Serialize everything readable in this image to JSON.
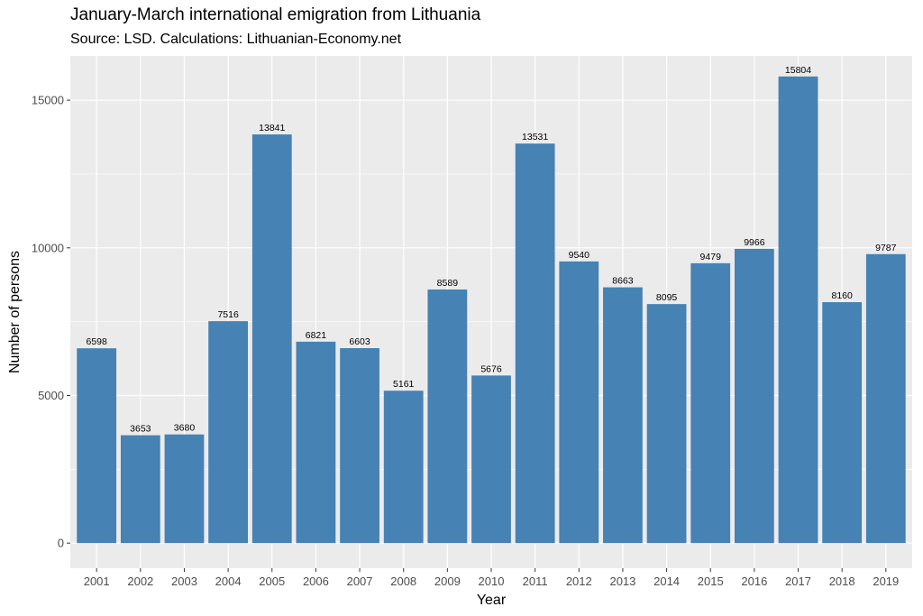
{
  "chart_data": {
    "type": "bar",
    "title": "January-March international emigration from Lithuania",
    "subtitle": "Source: LSD. Calculations: Lithuanian-Economy.net",
    "xlabel": "Year",
    "ylabel": "Number of persons",
    "categories": [
      "2001",
      "2002",
      "2003",
      "2004",
      "2005",
      "2006",
      "2007",
      "2008",
      "2009",
      "2010",
      "2011",
      "2012",
      "2013",
      "2014",
      "2015",
      "2016",
      "2017",
      "2018",
      "2019"
    ],
    "values": [
      6598,
      3653,
      3680,
      7516,
      13841,
      6821,
      6603,
      5161,
      8589,
      5676,
      13531,
      9540,
      8663,
      8095,
      9479,
      9966,
      15804,
      8160,
      9787
    ],
    "ylim": [
      -850,
      16500
    ],
    "yticks": [
      0,
      5000,
      10000,
      15000
    ],
    "ytick_labels": [
      "0",
      "5000",
      "10000",
      "15000"
    ],
    "grid": true,
    "bar_color": "#4682b4",
    "panel_color": "#ebebeb",
    "grid_color": "#ffffff"
  }
}
